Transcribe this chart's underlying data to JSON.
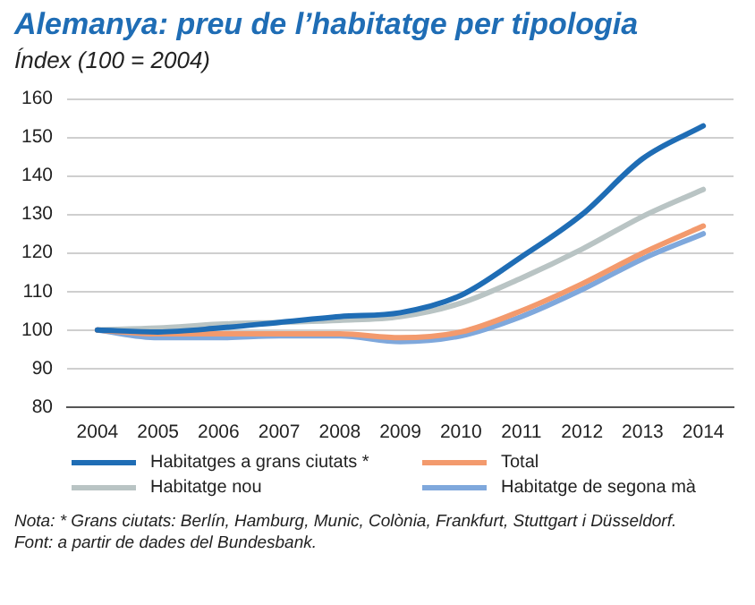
{
  "chart_data": {
    "type": "line",
    "title": "Alemanya: preu de l’habitatge per tipologia",
    "subtitle": "Índex (100 = 2004)",
    "categories": [
      "2004",
      "2005",
      "2006",
      "2007",
      "2008",
      "2009",
      "2010",
      "2011",
      "2012",
      "2013",
      "2014"
    ],
    "series": [
      {
        "name": "Habitatges a grans ciutats *",
        "color": "#1f6db5",
        "values": [
          100,
          99.5,
          100.5,
          102,
          103.5,
          104.5,
          109,
          119,
          130,
          144.5,
          153
        ]
      },
      {
        "name": "Total",
        "color": "#f39a6d",
        "values": [
          100,
          99,
          99,
          99,
          99,
          98,
          99.5,
          105,
          112,
          120,
          127
        ]
      },
      {
        "name": "Habitatge nou",
        "color": "#b9c4c4",
        "values": [
          100,
          100.5,
          101.5,
          102,
          102.5,
          103.5,
          107,
          113.5,
          121,
          129.5,
          136.5
        ]
      },
      {
        "name": "Habitatge de segona mà",
        "color": "#7fa8dc",
        "values": [
          100,
          98,
          98,
          98.5,
          98.5,
          97,
          98.5,
          103.5,
          110.5,
          118.5,
          125
        ]
      }
    ],
    "ylim": [
      80,
      160
    ],
    "yticks": [
      80,
      90,
      100,
      110,
      120,
      130,
      140,
      150,
      160
    ],
    "grid": "y",
    "legend": "bottom",
    "marker": "none",
    "line_style": "solid",
    "annotations": [
      "Nota: * Grans ciutats: Berlín, Hamburg, Munic, Colònia, Frankfurt, Stuttgart i Düsseldorf.",
      "Font: a partir de dades del Bundesbank."
    ]
  }
}
